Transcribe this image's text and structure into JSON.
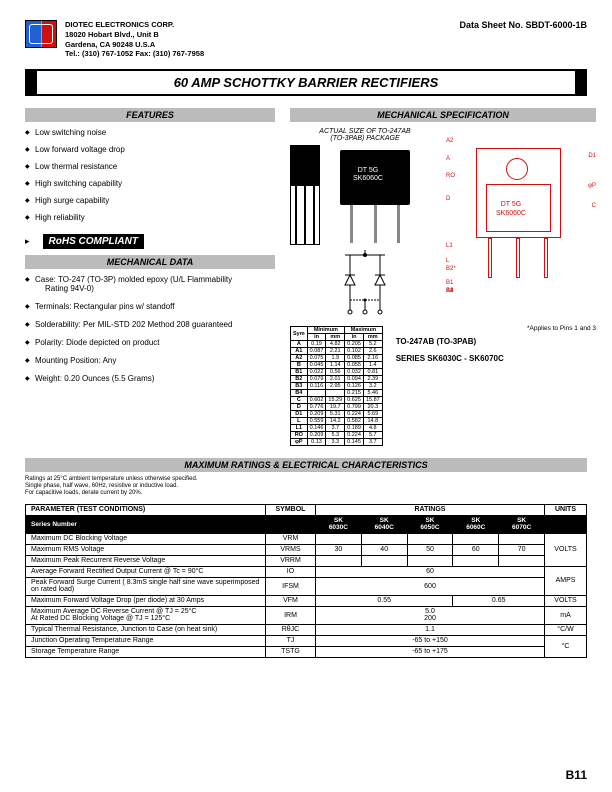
{
  "header": {
    "company": "DIOTEC  ELECTRONICS  CORP.",
    "addr1": "18020 Hobart Blvd.,  Unit B",
    "addr2": "Gardena, CA  90248  U.S.A",
    "tel": "Tel.: (310) 767-1052    Fax: (310) 767-7958",
    "datasheet": "Data Sheet No.   SBDT-6000-1B"
  },
  "title": "60 AMP SCHOTTKY BARRIER RECTIFIERS",
  "features": {
    "heading": "FEATURES",
    "items": [
      "Low switching noise",
      "Low forward voltage drop",
      "Low thermal resistance",
      "High switching capability",
      "High surge capability",
      "High reliability"
    ]
  },
  "rohs": "RoHS COMPLIANT",
  "mechdata": {
    "heading": "MECHANICAL DATA",
    "items": [
      {
        "t": "Case:  TO-247 (TO-3P) molded epoxy (U/L Flammability",
        "sub": "Rating 94V-0)"
      },
      {
        "t": "Terminals: Rectangular pins w/ standoff"
      },
      {
        "t": "Solderability: Per MIL-STD 202 Method 208 guaranteed"
      },
      {
        "t": "Polarity: Diode depicted on product"
      },
      {
        "t": "Mounting Position: Any"
      },
      {
        "t": "Weight: 0.20 Ounces (5.5 Grams)"
      }
    ]
  },
  "mechspec": {
    "heading": "MECHANICAL  SPECIFICATION",
    "pkg_label1": "ACTUAL SIZE OF TO-247AB",
    "pkg_label2": "(TO-3PAB) PACKAGE",
    "chip_text1": "DT 5G",
    "chip_text2": "SK6060C",
    "outline_text1": "DT  5G",
    "outline_text2": "SK6060C",
    "applies": "*Applies to Pins 1 and 3",
    "pkg_type": "TO-247AB  (TO-3PAB)",
    "series": "SERIES SK6030C - SK6070C",
    "dim_labels": {
      "A2": "A2",
      "A": "A",
      "RO": "RO",
      "D": "D",
      "D1": "D1",
      "P": "φP",
      "C": "C",
      "L1": "L1",
      "L": "L",
      "B1": "B1",
      "B2": "B2*",
      "A1": "A1",
      "B3": "B3",
      "B4": "B4"
    }
  },
  "dimtable": {
    "headers": [
      "Sym",
      "Minimum",
      "",
      "Maximum",
      ""
    ],
    "sub": [
      "",
      "in",
      "mm",
      "in",
      "mm"
    ],
    "rows": [
      [
        "A",
        "0.19",
        "4.82",
        "0.205",
        "5.2"
      ],
      [
        "A1",
        "0.087",
        "2.21",
        "0.102",
        "2.6"
      ],
      [
        "A2",
        "0.075",
        "1.9",
        "0.085",
        "2.16"
      ],
      [
        "B",
        "0.045",
        "1.14",
        "0.055",
        "1.4"
      ],
      [
        "B1",
        "0.022",
        "0.56",
        "0.032",
        "0.81"
      ],
      [
        "B2",
        "0.079",
        "2.01",
        "0.094",
        "2.39"
      ],
      [
        "B3",
        "0.116",
        "2.95",
        "0.126",
        "3.2"
      ],
      [
        "B4",
        "",
        "",
        "0.215",
        "5.46"
      ],
      [
        "C",
        "0.602",
        "15.29",
        "0.625",
        "15.87"
      ],
      [
        "D",
        "0.776",
        "19.7",
        "0.799",
        "20.3"
      ],
      [
        "D1",
        "0.209",
        "5.31",
        "0.224",
        "5.69"
      ],
      [
        "L",
        "0.559",
        "14.2",
        "0.582",
        "14.8"
      ],
      [
        "L1",
        "0.146",
        "3.7",
        "0.189",
        "4.8"
      ],
      [
        "RO",
        "0.209",
        "5.3",
        "0.224",
        "5.7"
      ],
      [
        "φP",
        "0.13",
        "3.3",
        "0.145",
        "3.7"
      ]
    ]
  },
  "maxratings": {
    "heading": "MAXIMUM RATINGS & ELECTRICAL CHARACTERISTICS",
    "note1": "Ratings at 25°C ambient temperature unless otherwise specified.",
    "note2": "Single phase, half wave, 60Hz, resistive or inductive load.",
    "note3": "For capacitive loads, derate current by 20%.",
    "cols": {
      "param": "PARAMETER (TEST CONDITIONS)",
      "symbol": "SYMBOL",
      "ratings": "RATINGS",
      "units": "UNITS"
    },
    "series_label": "Series Number",
    "series": [
      "SK 6030C",
      "SK 6040C",
      "SK 6050C",
      "SK 6060C",
      "SK 6070C"
    ],
    "rows": [
      {
        "p": "Maximum DC Blocking Voltage",
        "s": "VRM",
        "v": [
          "",
          "",
          "",
          "",
          ""
        ],
        "u": "",
        "span": 0
      },
      {
        "p": "Maximum RMS Voltage",
        "s": "VRMS",
        "v": [
          "30",
          "40",
          "50",
          "60",
          "70"
        ],
        "u": "VOLTS",
        "span": 0
      },
      {
        "p": "Maximum Peak Recurrent Reverse Voltage",
        "s": "VRRM",
        "v": [
          "",
          "",
          "",
          "",
          ""
        ],
        "u": "",
        "span": 0
      },
      {
        "p": "Average Forward Rectified Output Current @ Tc = 90°C",
        "s": "IO",
        "v5": "60",
        "u": "",
        "span": 5
      },
      {
        "p": "Peak Forward Surge Current ( 8.3mS single half sine wave superimposed on rated load)",
        "s": "IFSM",
        "v5": "600",
        "u": "AMPS",
        "span": 5
      },
      {
        "p": "Maximum Forward Voltage Drop (per diode) at  30 Amps",
        "s": "VFM",
        "v": [
          "",
          "0.55",
          "",
          "",
          "0.65"
        ],
        "u": "VOLTS",
        "colspans": [
          0,
          3,
          0,
          0,
          2
        ]
      },
      {
        "p": "Maximum Average DC Reverse Current              @ TJ =   25°C\nAt Rated DC Blocking Voltage                                @ TJ = 125°C",
        "s": "IRM",
        "v5": "5.0\n200",
        "u": "mA",
        "span": 5
      },
      {
        "p": "Typical Thermal Resistance, Junction to Case (on heat sink)",
        "s": "RθJC",
        "v5": "1.1",
        "u": "°C/W",
        "span": 5
      },
      {
        "p": "Junction Operating Temperature Range",
        "s": "TJ",
        "v5": "-65 to +150",
        "u": "",
        "span": 5,
        "urow": "°C"
      },
      {
        "p": "Storage Temperature Range",
        "s": "TSTG",
        "v5": "-65 to +175",
        "u": "",
        "span": 5
      }
    ]
  },
  "page": "B11"
}
